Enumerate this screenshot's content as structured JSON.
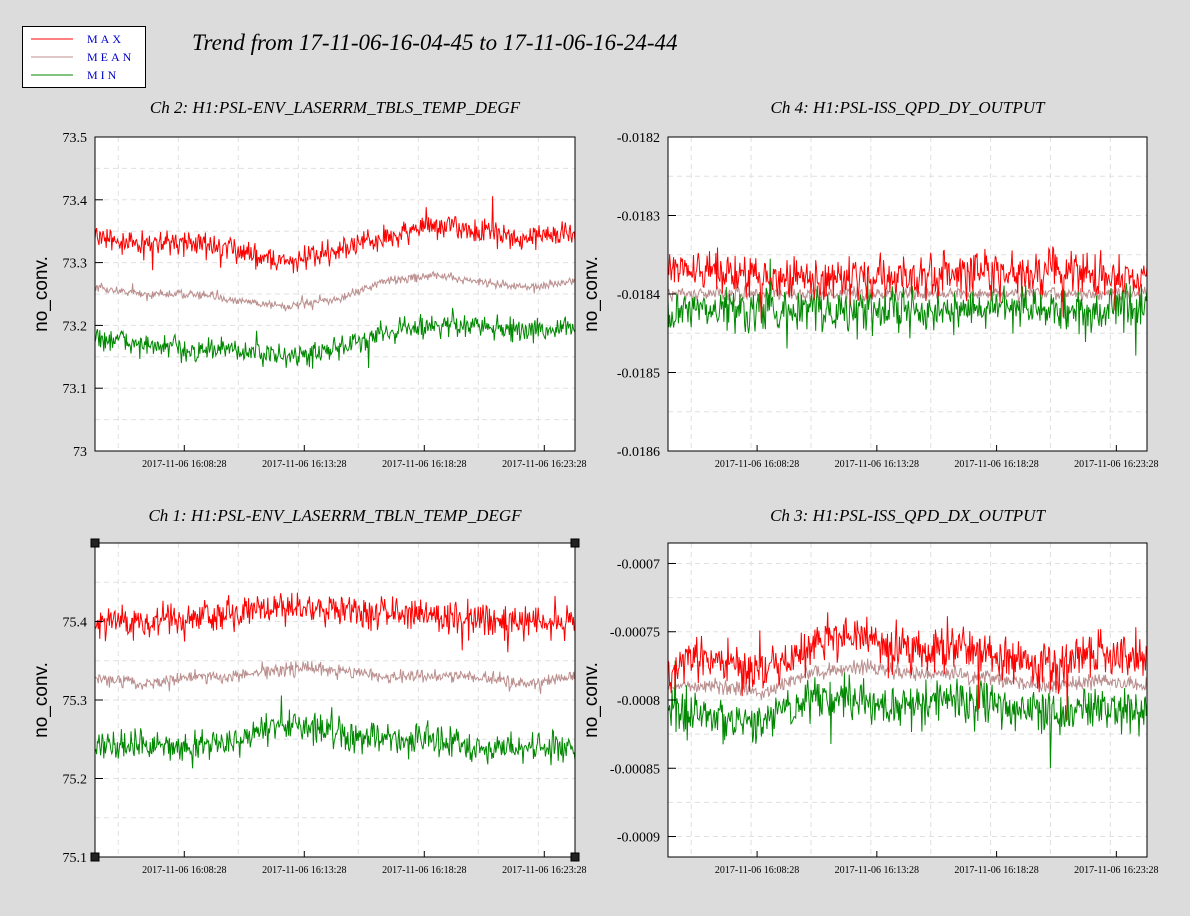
{
  "title": "Trend from 17-11-06-16-04-45 to 17-11-06-16-24-44",
  "legend": [
    {
      "name": "MAX",
      "color": "#ff0000"
    },
    {
      "name": "MEAN",
      "color": "#bc8f8f"
    },
    {
      "name": "MIN",
      "color": "#008800"
    }
  ],
  "chart_data": [
    {
      "type": "line",
      "title": "Ch 2: H1:PSL-ENV_LASERRM_TBLS_TEMP_DEGF",
      "ylabel": "no_conv.",
      "ylim": [
        73.0,
        73.5
      ],
      "yticks": [
        "73",
        "73.1",
        "73.2",
        "73.3",
        "73.4",
        "73.5"
      ],
      "xticks": [
        "2017-11-06 16:08:28",
        "2017-11-06 16:13:28",
        "2017-11-06 16:18:28",
        "2017-11-06 16:23:28"
      ],
      "grid": true,
      "series": [
        {
          "name": "MAX",
          "x": [
            0,
            2,
            4,
            6,
            8,
            10,
            12,
            14,
            16,
            18,
            20
          ],
          "values": [
            73.34,
            73.33,
            73.33,
            73.32,
            73.3,
            73.32,
            73.34,
            73.36,
            73.35,
            73.34,
            73.35
          ]
        },
        {
          "name": "MEAN",
          "x": [
            0,
            2,
            4,
            6,
            8,
            10,
            12,
            14,
            16,
            18,
            20
          ],
          "values": [
            73.26,
            73.25,
            73.25,
            73.24,
            73.23,
            73.24,
            73.27,
            73.28,
            73.27,
            73.26,
            73.27
          ]
        },
        {
          "name": "MIN",
          "x": [
            0,
            2,
            4,
            6,
            8,
            10,
            12,
            14,
            16,
            18,
            20
          ],
          "values": [
            73.18,
            73.17,
            73.16,
            73.16,
            73.15,
            73.16,
            73.19,
            73.2,
            73.2,
            73.19,
            73.2
          ]
        }
      ]
    },
    {
      "type": "line",
      "title": "Ch 4: H1:PSL-ISS_QPD_DY_OUTPUT",
      "ylabel": "no_conv.",
      "ylim": [
        -0.0186,
        -0.0182
      ],
      "yticks": [
        "-0.0186",
        "-0.0185",
        "-0.0184",
        "-0.0183",
        "-0.0182"
      ],
      "xticks": [
        "2017-11-06 16:08:28",
        "2017-11-06 16:13:28",
        "2017-11-06 16:18:28",
        "2017-11-06 16:23:28"
      ],
      "grid": true,
      "series": [
        {
          "name": "MAX",
          "x": [
            0,
            2,
            4,
            6,
            8,
            10,
            12,
            14,
            16,
            18,
            20
          ],
          "values": [
            -0.01837,
            -0.01837,
            -0.01838,
            -0.01838,
            -0.01838,
            -0.01838,
            -0.01837,
            -0.01838,
            -0.01837,
            -0.01838,
            -0.01838
          ]
        },
        {
          "name": "MEAN",
          "x": [
            0,
            2,
            4,
            6,
            8,
            10,
            12,
            14,
            16,
            18,
            20
          ],
          "values": [
            -0.0184,
            -0.0184,
            -0.0184,
            -0.0184,
            -0.0184,
            -0.0184,
            -0.0184,
            -0.0184,
            -0.0184,
            -0.0184,
            -0.0184
          ]
        },
        {
          "name": "MIN",
          "x": [
            0,
            2,
            4,
            6,
            8,
            10,
            12,
            14,
            16,
            18,
            20
          ],
          "values": [
            -0.01842,
            -0.01842,
            -0.01842,
            -0.01842,
            -0.01842,
            -0.01842,
            -0.01842,
            -0.01842,
            -0.01842,
            -0.01842,
            -0.01842
          ]
        }
      ]
    },
    {
      "type": "line",
      "title": "Ch 1: H1:PSL-ENV_LASERRM_TBLN_TEMP_DEGF",
      "ylabel": "no_conv.",
      "ylim": [
        75.1,
        75.5
      ],
      "yticks": [
        "75.1",
        "75.2",
        "75.3",
        "75.4"
      ],
      "xticks": [
        "2017-11-06 16:08:28",
        "2017-11-06 16:13:28",
        "2017-11-06 16:18:28",
        "2017-11-06 16:23:28"
      ],
      "grid": true,
      "series": [
        {
          "name": "MAX",
          "x": [
            0,
            2,
            4,
            6,
            8,
            10,
            12,
            14,
            16,
            18,
            20
          ],
          "values": [
            75.4,
            75.4,
            75.4,
            75.41,
            75.42,
            75.42,
            75.41,
            75.41,
            75.4,
            75.4,
            75.4
          ]
        },
        {
          "name": "MEAN",
          "x": [
            0,
            2,
            4,
            6,
            8,
            10,
            12,
            14,
            16,
            18,
            20
          ],
          "values": [
            75.33,
            75.32,
            75.33,
            75.33,
            75.34,
            75.34,
            75.33,
            75.33,
            75.33,
            75.32,
            75.33
          ]
        },
        {
          "name": "MIN",
          "x": [
            0,
            2,
            4,
            6,
            8,
            10,
            12,
            14,
            16,
            18,
            20
          ],
          "values": [
            75.24,
            75.24,
            75.24,
            75.25,
            75.27,
            75.26,
            75.25,
            75.25,
            75.24,
            75.24,
            75.24
          ]
        }
      ]
    },
    {
      "type": "line",
      "title": "Ch 3: H1:PSL-ISS_QPD_DX_OUTPUT",
      "ylabel": "no_conv.",
      "ylim": [
        -0.000915,
        -0.000685
      ],
      "yticks": [
        "-0.0009",
        "-0.00085",
        "-0.0008",
        "-0.00075",
        "-0.0007"
      ],
      "xticks": [
        "2017-11-06 16:08:28",
        "2017-11-06 16:13:28",
        "2017-11-06 16:18:28",
        "2017-11-06 16:23:28"
      ],
      "grid": true,
      "series": [
        {
          "name": "MAX",
          "x": [
            0,
            2,
            4,
            6,
            8,
            10,
            12,
            14,
            16,
            18,
            20
          ],
          "values": [
            -0.000775,
            -0.00077,
            -0.00078,
            -0.00076,
            -0.00075,
            -0.000765,
            -0.00076,
            -0.00077,
            -0.000775,
            -0.000765,
            -0.00077
          ]
        },
        {
          "name": "MEAN",
          "x": [
            0,
            2,
            4,
            6,
            8,
            10,
            12,
            14,
            16,
            18,
            20
          ],
          "values": [
            -0.00079,
            -0.00079,
            -0.000795,
            -0.00078,
            -0.000775,
            -0.00078,
            -0.00078,
            -0.000785,
            -0.00079,
            -0.000785,
            -0.00079
          ]
        },
        {
          "name": "MIN",
          "x": [
            0,
            2,
            4,
            6,
            8,
            10,
            12,
            14,
            16,
            18,
            20
          ],
          "values": [
            -0.00081,
            -0.000815,
            -0.000815,
            -0.0008,
            -0.0008,
            -0.000805,
            -0.0008,
            -0.000805,
            -0.00081,
            -0.000805,
            -0.00081
          ]
        }
      ]
    }
  ]
}
